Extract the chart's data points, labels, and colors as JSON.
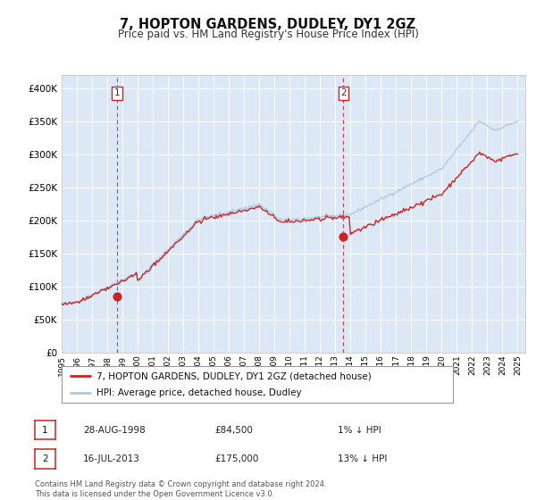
{
  "title": "7, HOPTON GARDENS, DUDLEY, DY1 2GZ",
  "subtitle": "Price paid vs. HM Land Registry's House Price Index (HPI)",
  "title_fontsize": 10.5,
  "subtitle_fontsize": 8.5,
  "background_color": "#ffffff",
  "plot_bg_color": "#dce8f5",
  "grid_color": "#ffffff",
  "hpi_color": "#a8c8e8",
  "price_color": "#cc2222",
  "ylim": [
    0,
    420000
  ],
  "yticks": [
    0,
    50000,
    100000,
    150000,
    200000,
    250000,
    300000,
    350000,
    400000
  ],
  "ytick_labels": [
    "£0",
    "£50K",
    "£100K",
    "£150K",
    "£200K",
    "£250K",
    "£300K",
    "£350K",
    "£400K"
  ],
  "sale1_date": 1998.66,
  "sale1_price": 84500,
  "sale2_date": 2013.54,
  "sale2_price": 175000,
  "legend_line1": "7, HOPTON GARDENS, DUDLEY, DY1 2GZ (detached house)",
  "legend_line2": "HPI: Average price, detached house, Dudley",
  "annotation1_date": "28-AUG-1998",
  "annotation1_price": "£84,500",
  "annotation1_pct": "1% ↓ HPI",
  "annotation2_date": "16-JUL-2013",
  "annotation2_price": "£175,000",
  "annotation2_pct": "13% ↓ HPI",
  "footnote_line1": "Contains HM Land Registry data © Crown copyright and database right 2024.",
  "footnote_line2": "This data is licensed under the Open Government Licence v3.0.",
  "xmin": 1995.0,
  "xmax": 2025.5
}
